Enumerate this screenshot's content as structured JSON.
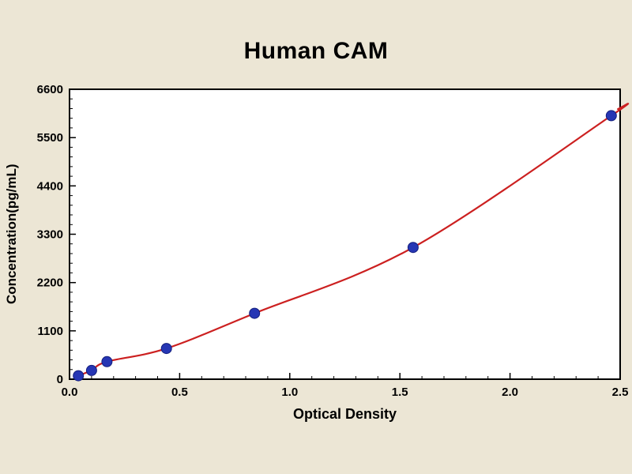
{
  "title": "Human CAM",
  "colors": {
    "background": "#ece6d5",
    "plot_bg": "#ffffff",
    "frame": "#000000",
    "curve": "#cc2020",
    "marker_fill": "#2636b4",
    "marker_edge": "#141f7d"
  },
  "chart_data": {
    "type": "scatter",
    "title": "Human CAM",
    "xlabel": "Optical Density",
    "ylabel": "Concentration(pg/mL)",
    "xlim": [
      0,
      2.5
    ],
    "ylim": [
      0,
      6600
    ],
    "x_ticks": [
      0.0,
      0.5,
      1.0,
      1.5,
      2.0,
      2.5
    ],
    "x_tick_labels": [
      "0.0",
      "0.5",
      "1.0",
      "1.5",
      "2.0",
      "2.5"
    ],
    "y_ticks": [
      0,
      1100,
      2200,
      3300,
      4400,
      5500,
      6600
    ],
    "y_tick_labels": [
      "0",
      "1100",
      "2200",
      "3300",
      "4400",
      "5500",
      "6600"
    ],
    "x_minor_step": 0.1,
    "y_minor_step": 220,
    "grid": false,
    "legend": false,
    "series": [
      {
        "name": "standard-points",
        "marker": "circle",
        "x": [
          0.04,
          0.1,
          0.17,
          0.44,
          0.84,
          1.56,
          2.46
        ],
        "y": [
          80,
          200,
          400,
          700,
          1500,
          3000,
          6000
        ]
      }
    ],
    "fit_curve": [
      [
        0.03,
        40
      ],
      [
        0.04,
        80
      ],
      [
        0.1,
        200
      ],
      [
        0.17,
        400
      ],
      [
        0.44,
        700
      ],
      [
        0.84,
        1500
      ],
      [
        1.56,
        3000
      ],
      [
        2.46,
        6000
      ],
      [
        2.49,
        6150
      ]
    ]
  }
}
